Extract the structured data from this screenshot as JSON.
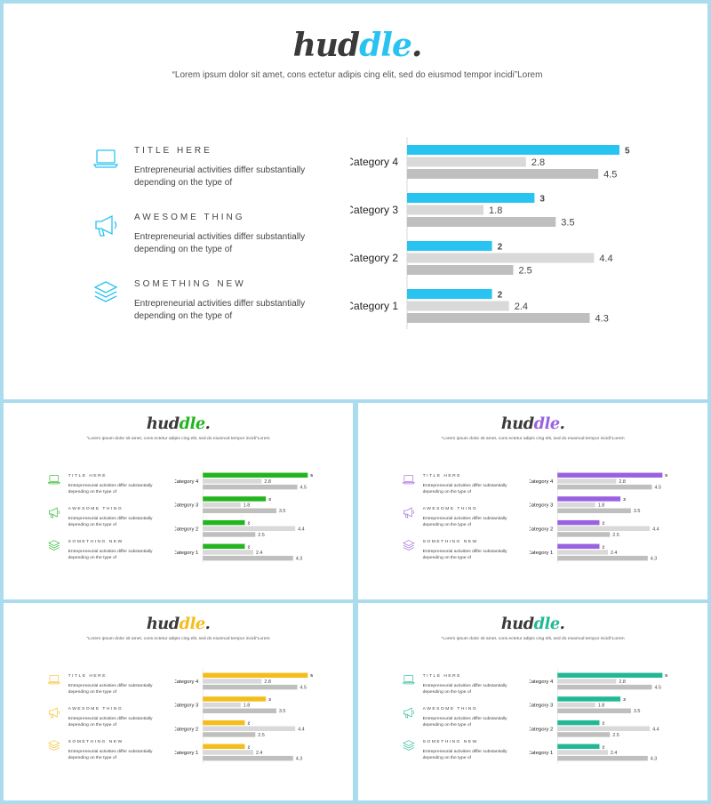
{
  "logo": {
    "main": "hud",
    "accent": "dle",
    "dot": "."
  },
  "quote": "“Lorem ipsum dolor sit amet, cons ectetur adipis cing elit, sed do eiusmod tempor incidi”Lorem",
  "features": [
    {
      "icon": "laptop-icon",
      "title": "TITLE HERE",
      "desc": "Entrepreneurial activities differ substantially depending on the type of"
    },
    {
      "icon": "megaphone-icon",
      "title": "AWESOME THING",
      "desc": "Entrepreneurial activities differ substantially depending on the type of"
    },
    {
      "icon": "layers-icon",
      "title": "SOMETHING NEW",
      "desc": "Entrepreneurial activities differ substantially depending on the type of"
    }
  ],
  "slide_accents": [
    "#29c3f2",
    "#22b51f",
    "#9a62e0",
    "#f5bd1b",
    "#22b895"
  ],
  "chart_data": {
    "type": "bar",
    "orientation": "horizontal",
    "categories": [
      "Category 1",
      "Category 2",
      "Category 3",
      "Category 4"
    ],
    "series": [
      {
        "values": [
          2,
          2,
          3,
          5
        ],
        "color": "accent"
      },
      {
        "values": [
          2.4,
          4.4,
          1.8,
          2.8
        ],
        "color": "#d9d9d9"
      },
      {
        "values": [
          4.3,
          2.5,
          3.5,
          4.5
        ],
        "color": "#bfbfbf"
      }
    ],
    "xlim": [
      0,
      5
    ],
    "grid": false,
    "legend": "none"
  }
}
